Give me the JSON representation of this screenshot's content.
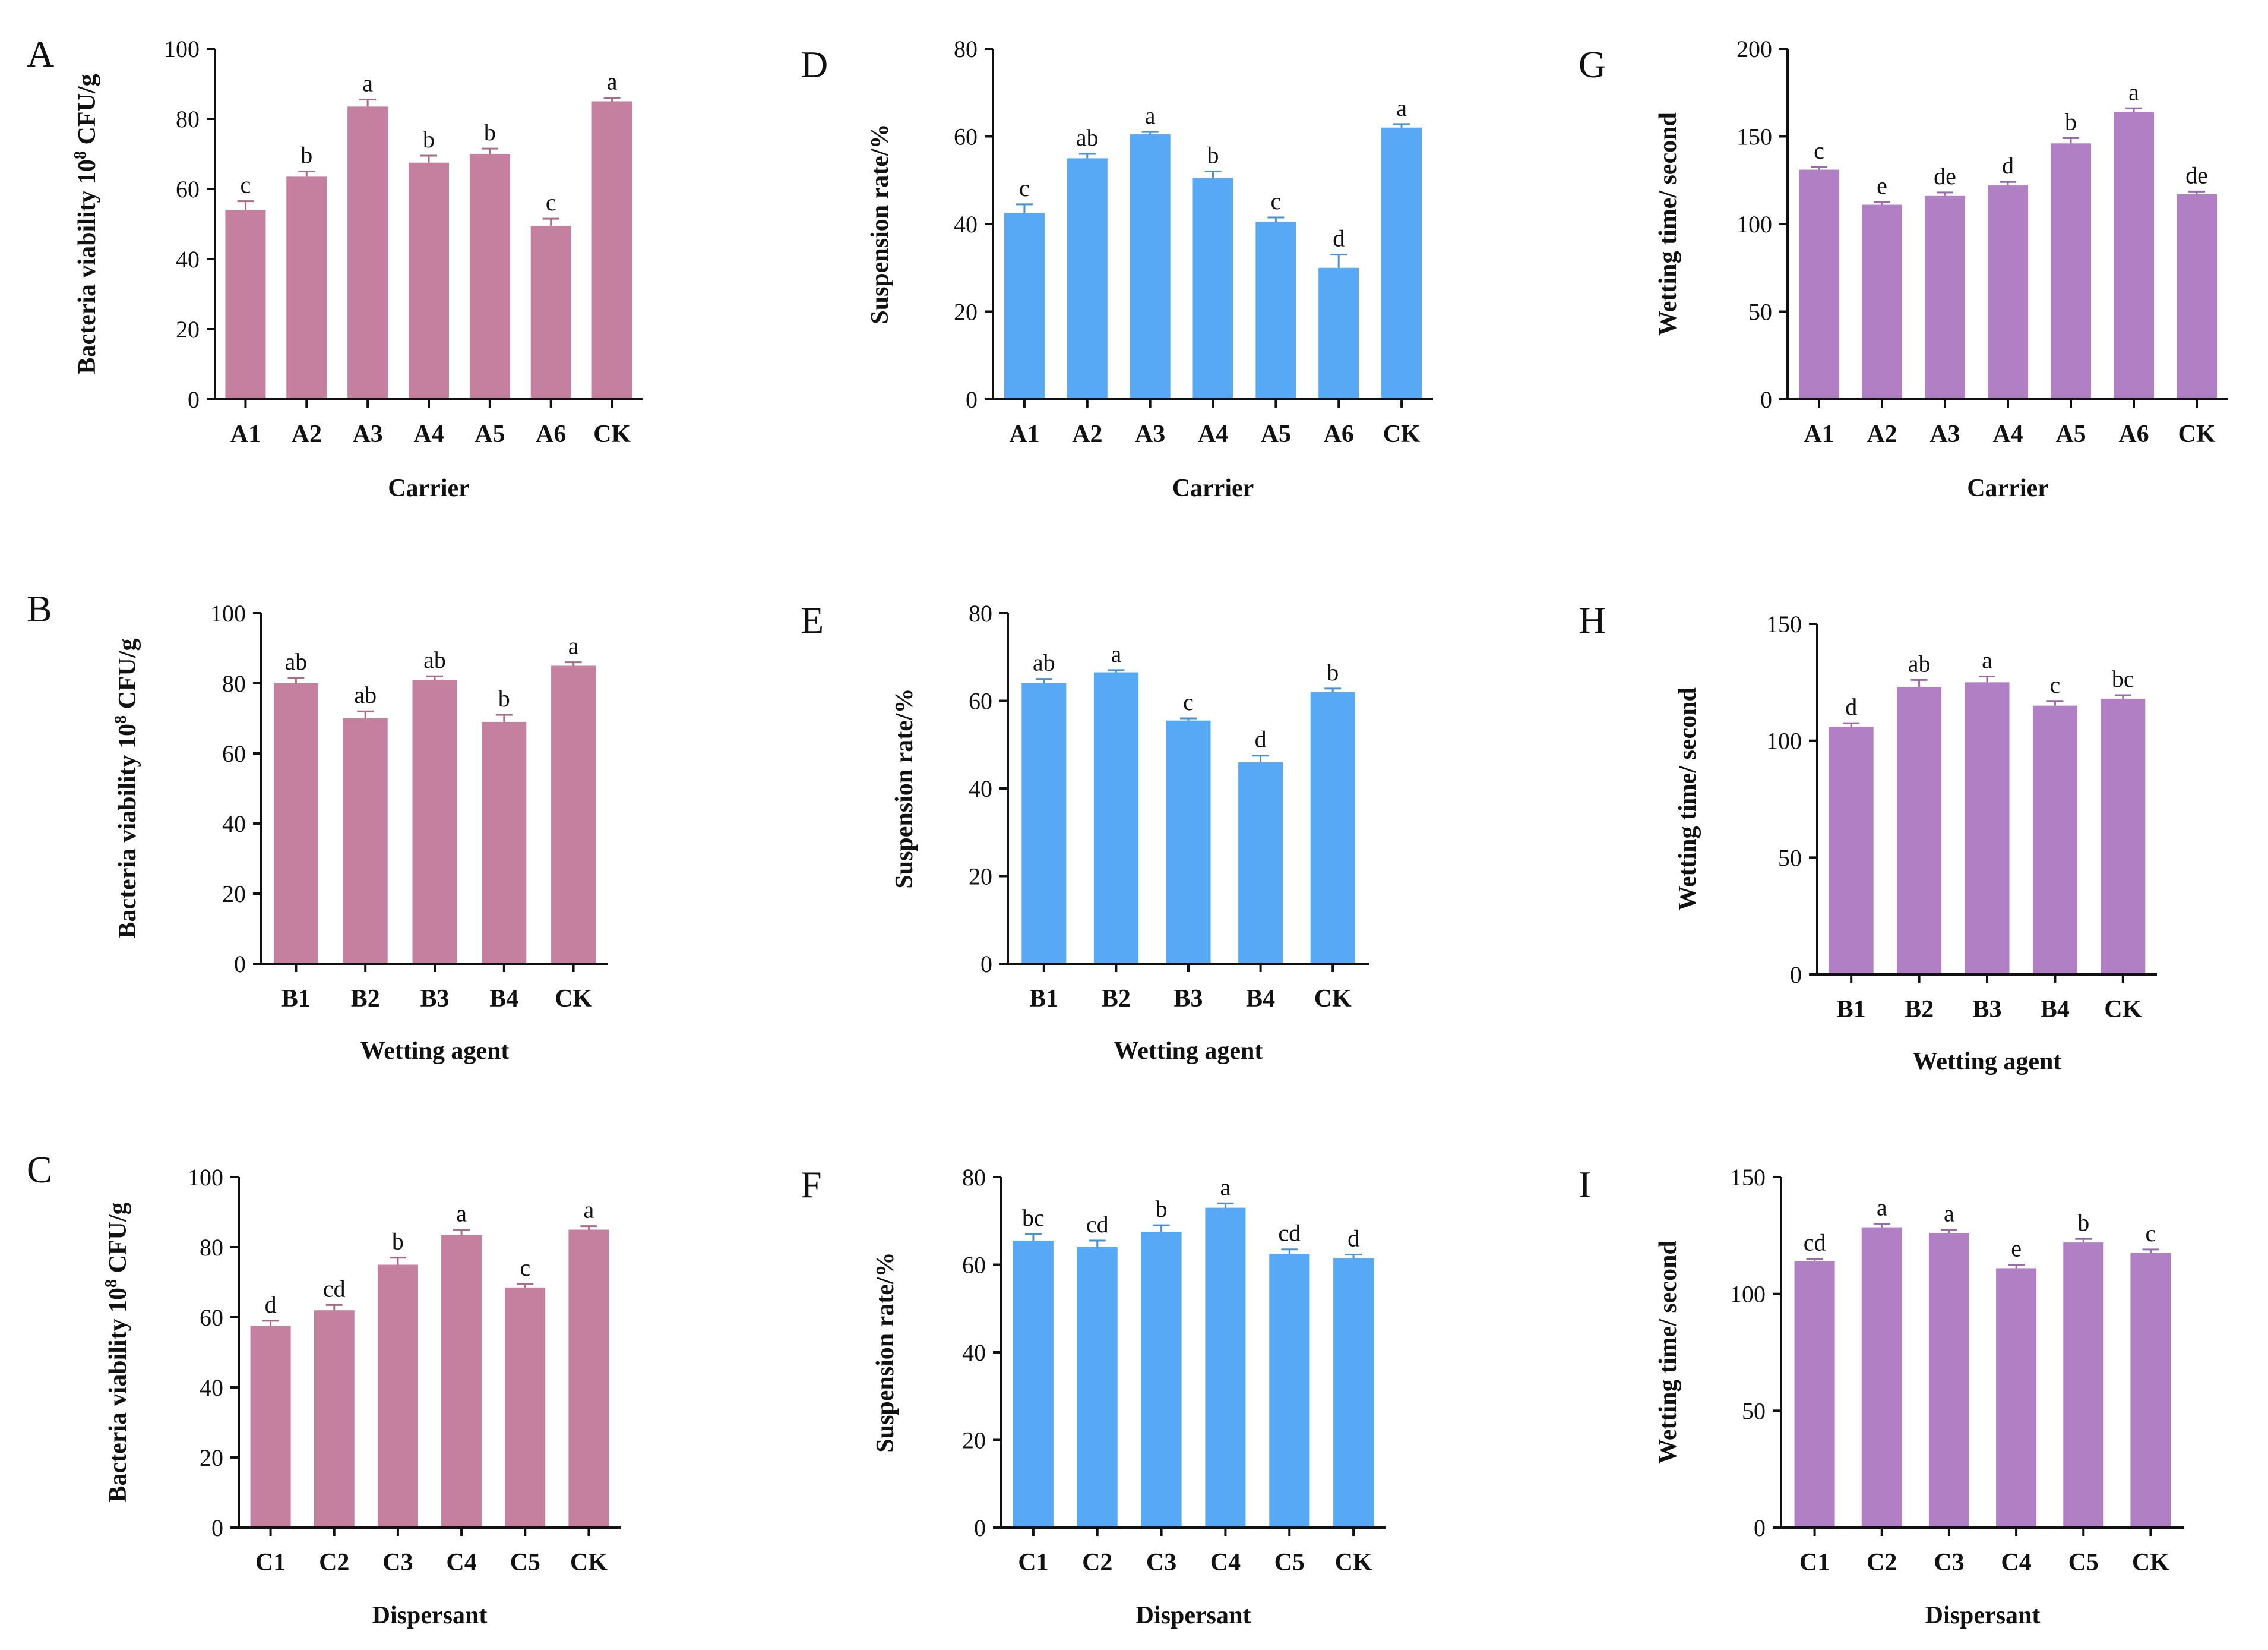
{
  "colors": {
    "pink": "#c5809f",
    "blue": "#57a8f5",
    "purple": "#b07fc4"
  },
  "chart_data": [
    {
      "panel": "A",
      "type": "bar",
      "color_key": "pink",
      "xlabel": "Carrier",
      "ylabel_main": "Bacteria viability 10",
      "ylabel_sup": "8",
      "ylabel_tail": " CFU/g",
      "ylim": [
        0,
        100
      ],
      "yticks": [
        "0",
        "20",
        "40",
        "60",
        "80",
        "100"
      ],
      "categories": [
        "A1",
        "A2",
        "A3",
        "A4",
        "A5",
        "A6",
        "CK"
      ],
      "values": [
        54,
        63.5,
        83.5,
        67.5,
        70,
        49.5,
        85
      ],
      "errors": [
        2.5,
        1.5,
        2,
        2,
        1.5,
        2,
        1
      ],
      "sig": [
        "c",
        "b",
        "a",
        "b",
        "b",
        "c",
        "a"
      ]
    },
    {
      "panel": "D",
      "type": "bar",
      "color_key": "blue",
      "xlabel": "Carrier",
      "ylabel": "Suspension rate/%",
      "ylim": [
        0,
        80
      ],
      "yticks": [
        "0",
        "20",
        "40",
        "60",
        "80"
      ],
      "categories": [
        "A1",
        "A2",
        "A3",
        "A4",
        "A5",
        "A6",
        "CK"
      ],
      "values": [
        42.5,
        55,
        60.5,
        50.5,
        40.5,
        30,
        62
      ],
      "errors": [
        2,
        1,
        0.5,
        1.5,
        1,
        3,
        0.8
      ],
      "sig": [
        "c",
        "ab",
        "a",
        "b",
        "c",
        "d",
        "a"
      ]
    },
    {
      "panel": "G",
      "type": "bar",
      "color_key": "purple",
      "xlabel": "Carrier",
      "ylabel": "Wetting time/ second",
      "ylim": [
        0,
        200
      ],
      "yticks": [
        "0",
        "50",
        "100",
        "150",
        "200"
      ],
      "categories": [
        "A1",
        "A2",
        "A3",
        "A4",
        "A5",
        "A6",
        "CK"
      ],
      "values": [
        131,
        111,
        116,
        122,
        146,
        164,
        117
      ],
      "errors": [
        1.5,
        1.5,
        2,
        2,
        3,
        2,
        1.5
      ],
      "sig": [
        "c",
        "e",
        "de",
        "d",
        "b",
        "a",
        "de"
      ]
    },
    {
      "panel": "B",
      "type": "bar",
      "color_key": "pink",
      "xlabel": "Wetting agent",
      "ylabel_main": "Bacteria viability 10",
      "ylabel_sup": "8",
      "ylabel_tail": " CFU/g",
      "ylim": [
        0,
        100
      ],
      "yticks": [
        "0",
        "20",
        "40",
        "60",
        "80",
        "100"
      ],
      "categories": [
        "B1",
        "B2",
        "B3",
        "B4",
        "CK"
      ],
      "values": [
        80,
        70,
        81,
        69,
        85
      ],
      "errors": [
        1.5,
        2,
        1,
        2,
        1
      ],
      "sig": [
        "ab",
        "ab",
        "ab",
        "b",
        "a"
      ]
    },
    {
      "panel": "E",
      "type": "bar",
      "color_key": "blue",
      "xlabel": "Wetting agent",
      "ylabel": "Suspension rate/%",
      "ylim": [
        0,
        80
      ],
      "yticks": [
        "0",
        "20",
        "40",
        "60",
        "80"
      ],
      "categories": [
        "B1",
        "B2",
        "B3",
        "B4",
        "CK"
      ],
      "values": [
        64,
        66.5,
        55.5,
        46,
        62
      ],
      "errors": [
        1,
        0.5,
        0.5,
        1.5,
        0.8
      ],
      "sig": [
        "ab",
        "a",
        "c",
        "d",
        "b"
      ]
    },
    {
      "panel": "H",
      "type": "bar",
      "color_key": "purple",
      "xlabel": "Wetting agent",
      "ylabel": "Wetting time/ second",
      "ylim": [
        0,
        150
      ],
      "yticks": [
        "0",
        "50",
        "100",
        "150"
      ],
      "categories": [
        "B1",
        "B2",
        "B3",
        "B4",
        "CK"
      ],
      "values": [
        106,
        123,
        125,
        115,
        118
      ],
      "errors": [
        1.5,
        3,
        2.5,
        2,
        1.5
      ],
      "sig": [
        "d",
        "ab",
        "a",
        "c",
        "bc"
      ]
    },
    {
      "panel": "C",
      "type": "bar",
      "color_key": "pink",
      "xlabel": "Dispersant",
      "ylabel_main": "Bacteria viability 10",
      "ylabel_sup": "8",
      "ylabel_tail": " CFU/g",
      "ylim": [
        0,
        100
      ],
      "yticks": [
        "0",
        "20",
        "40",
        "60",
        "80",
        "100"
      ],
      "categories": [
        "C1",
        "C2",
        "C3",
        "C4",
        "C5",
        "CK"
      ],
      "values": [
        57.5,
        62,
        75,
        83.5,
        68.5,
        85
      ],
      "errors": [
        1.5,
        1.5,
        2,
        1.5,
        1,
        1
      ],
      "sig": [
        "d",
        "cd",
        "b",
        "a",
        "c",
        "a"
      ]
    },
    {
      "panel": "F",
      "type": "bar",
      "color_key": "blue",
      "xlabel": "Dispersant",
      "ylabel": "Suspension rate/%",
      "ylim": [
        0,
        80
      ],
      "yticks": [
        "0",
        "20",
        "40",
        "60",
        "80"
      ],
      "categories": [
        "C1",
        "C2",
        "C3",
        "C4",
        "C5",
        "CK"
      ],
      "values": [
        65.5,
        64,
        67.5,
        73,
        62.5,
        61.5
      ],
      "errors": [
        1.5,
        1.5,
        1.5,
        1,
        1,
        0.8
      ],
      "sig": [
        "bc",
        "cd",
        "b",
        "a",
        "cd",
        "d"
      ]
    },
    {
      "panel": "I",
      "type": "bar",
      "color_key": "purple",
      "xlabel": "Dispersant",
      "ylabel": "Wetting time/ second",
      "ylim": [
        0,
        150
      ],
      "yticks": [
        "0",
        "50",
        "100",
        "150"
      ],
      "categories": [
        "C1",
        "C2",
        "C3",
        "C4",
        "C5",
        "CK"
      ],
      "values": [
        114,
        128.5,
        126,
        111,
        122,
        117.5
      ],
      "errors": [
        1,
        1.5,
        1.5,
        1.5,
        1.5,
        1.5
      ],
      "sig": [
        "cd",
        "a",
        "a",
        "e",
        "b",
        "c"
      ]
    }
  ]
}
